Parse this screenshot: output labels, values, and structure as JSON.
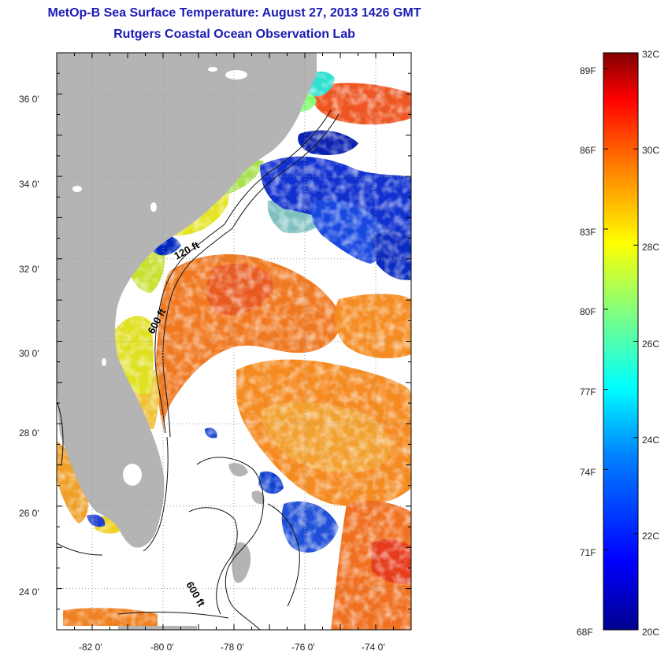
{
  "header": {
    "title": "MetOp-B Sea Surface Temperature:  August 27, 2013 1426 GMT",
    "subtitle": "Rutgers Coastal Ocean Observation Lab"
  },
  "map": {
    "lat_ticks": [
      "36 0'",
      "34 0'",
      "32 0'",
      "30 0'",
      "28 0'",
      "26 0'",
      "24 0'"
    ],
    "lon_ticks": [
      "-82 0'",
      "-80 0'",
      "-78 0'",
      "-76 0'",
      "-74 0'"
    ],
    "lat_range": [
      23,
      37
    ],
    "lon_range": [
      -83,
      -73
    ],
    "isobath_labels": [
      "120 ft",
      "600 ft",
      "600 ft"
    ],
    "land_color": "#b4b4b4",
    "cloud_color": "#ffffff"
  },
  "colorbar": {
    "celsius_labels": [
      "32C",
      "30C",
      "28C",
      "26C",
      "24C",
      "22C",
      "20C"
    ],
    "fahrenheit_labels": [
      "89F",
      "86F",
      "83F",
      "80F",
      "77F",
      "74F",
      "71F",
      "68F"
    ],
    "range_c": [
      20,
      32
    ],
    "colors": [
      "#00008f",
      "#0000ff",
      "#0080ff",
      "#00ffff",
      "#80ff80",
      "#ffff00",
      "#ff8000",
      "#ff0000",
      "#800000"
    ]
  }
}
